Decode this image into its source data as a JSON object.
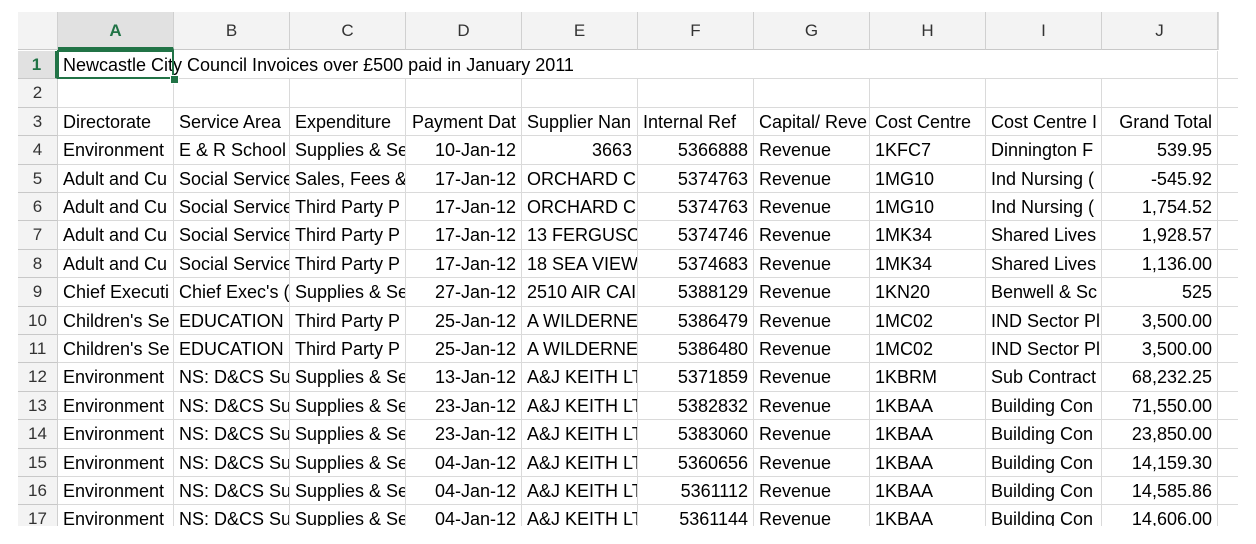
{
  "sheet": {
    "columns": [
      "A",
      "B",
      "C",
      "D",
      "E",
      "F",
      "G",
      "H",
      "I",
      "J"
    ],
    "rows": [
      {
        "number": 1,
        "cells": [
          "Newcastle City Council Invoices over £500 paid in January 2011",
          null,
          null,
          null,
          null,
          null,
          null,
          null,
          null,
          null
        ]
      },
      {
        "number": 2,
        "cells": [
          null,
          null,
          null,
          null,
          null,
          null,
          null,
          null,
          null,
          null
        ]
      },
      {
        "number": 3,
        "cells": [
          "Directorate",
          "Service Area",
          "Expenditure",
          "Payment Dat",
          "Supplier Nan",
          "Internal Ref",
          "Capital/ Reve",
          "Cost Centre",
          "Cost Centre I",
          "Grand Total"
        ]
      },
      {
        "number": 4,
        "cells": [
          "Environment",
          "E & R School",
          "Supplies & Se",
          "10-Jan-12",
          3663,
          5366888,
          "Revenue",
          "1KFC7",
          "Dinnington F",
          "539.95"
        ]
      },
      {
        "number": 5,
        "cells": [
          "Adult and Cu",
          "Social Service",
          "Sales, Fees &",
          "17-Jan-12",
          "ORCHARD C.",
          5374763,
          "Revenue",
          "1MG10",
          "Ind Nursing (",
          "-545.92"
        ]
      },
      {
        "number": 6,
        "cells": [
          "Adult and Cu",
          "Social Service",
          "Third Party P",
          "17-Jan-12",
          "ORCHARD C.",
          5374763,
          "Revenue",
          "1MG10",
          "Ind Nursing (",
          "1,754.52"
        ]
      },
      {
        "number": 7,
        "cells": [
          "Adult and Cu",
          "Social Service",
          "Third Party P",
          "17-Jan-12",
          "13 FERGUSO",
          5374746,
          "Revenue",
          "1MK34",
          "Shared Lives",
          "1,928.57"
        ]
      },
      {
        "number": 8,
        "cells": [
          "Adult and Cu",
          "Social Service",
          "Third Party P",
          "17-Jan-12",
          "18 SEA VIEW",
          5374683,
          "Revenue",
          "1MK34",
          "Shared Lives",
          "1,136.00"
        ]
      },
      {
        "number": 9,
        "cells": [
          "Chief Executi",
          "Chief Exec's (",
          "Supplies & Se",
          "27-Jan-12",
          "2510 AIR CAI",
          5388129,
          "Revenue",
          "1KN20",
          "Benwell & Sc",
          525
        ]
      },
      {
        "number": 10,
        "cells": [
          "Children's Se",
          "EDUCATION",
          "Third Party P",
          "25-Jan-12",
          "A WILDERNE",
          5386479,
          "Revenue",
          "1MC02",
          "IND Sector Pl",
          "3,500.00"
        ]
      },
      {
        "number": 11,
        "cells": [
          "Children's Se",
          "EDUCATION",
          "Third Party P",
          "25-Jan-12",
          "A WILDERNE",
          5386480,
          "Revenue",
          "1MC02",
          "IND Sector Pl",
          "3,500.00"
        ]
      },
      {
        "number": 12,
        "cells": [
          "Environment",
          "NS: D&CS Su",
          "Supplies & Se",
          "13-Jan-12",
          "A&J KEITH LT",
          5371859,
          "Revenue",
          "1KBRM",
          "Sub Contract",
          "68,232.25"
        ]
      },
      {
        "number": 13,
        "cells": [
          "Environment",
          "NS: D&CS Su",
          "Supplies & Se",
          "23-Jan-12",
          "A&J KEITH LT",
          5382832,
          "Revenue",
          "1KBAA",
          "Building Con",
          "71,550.00"
        ]
      },
      {
        "number": 14,
        "cells": [
          "Environment",
          "NS: D&CS Su",
          "Supplies & Se",
          "23-Jan-12",
          "A&J KEITH LT",
          5383060,
          "Revenue",
          "1KBAA",
          "Building Con",
          "23,850.00"
        ]
      },
      {
        "number": 15,
        "cells": [
          "Environment",
          "NS: D&CS Su",
          "Supplies & Se",
          "04-Jan-12",
          "A&J KEITH LT",
          5360656,
          "Revenue",
          "1KBAA",
          "Building Con",
          "14,159.30"
        ]
      },
      {
        "number": 16,
        "cells": [
          "Environment",
          "NS: D&CS Su",
          "Supplies & Se",
          "04-Jan-12",
          "A&J KEITH LT",
          5361112,
          "Revenue",
          "1KBAA",
          "Building Con",
          "14,585.86"
        ]
      },
      {
        "number": 17,
        "cells": [
          "Environment",
          "NS: D&CS Su",
          "Supplies & Se",
          "04-Jan-12",
          "A&J KEITH LT",
          5361144,
          "Revenue",
          "1KBAA",
          "Building Con",
          "14,606.00"
        ]
      }
    ]
  }
}
